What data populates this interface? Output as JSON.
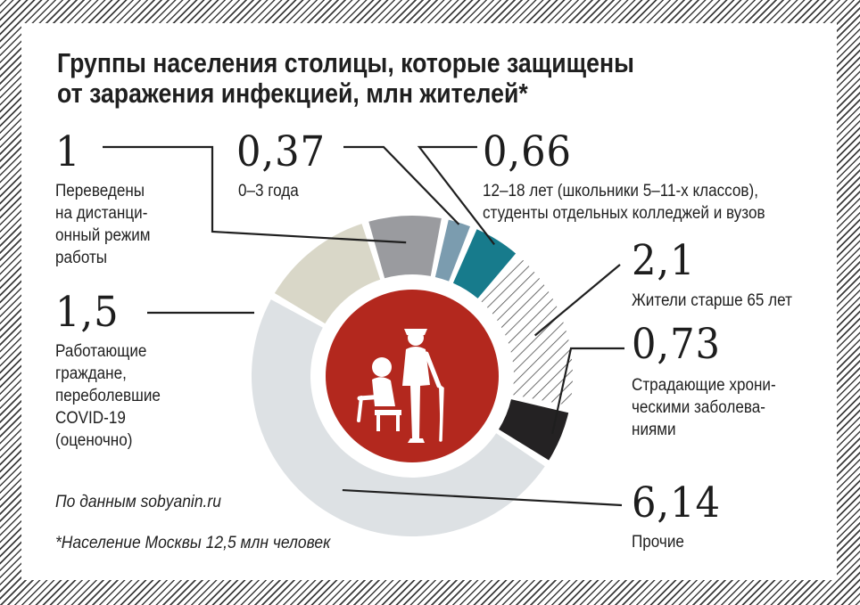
{
  "title_line1": "Группы населения столицы, которые защищены",
  "title_line2": "от заражения инфекцией, млн жителей*",
  "source": "По данным sobyanin.ru",
  "footnote": "*Население Москвы 12,5 млн человек",
  "center_icon": "elderly-people-icon",
  "colors": {
    "hatch": "#3b3b3b",
    "center": "#b3281e"
  },
  "chart_data": {
    "type": "pie",
    "style": "donut",
    "unit": "млн жителей",
    "slices": [
      {
        "value": 1,
        "value_label": "1",
        "label_lines": [
          "Переведены",
          "на дистанци-",
          "онный режим",
          "работы"
        ],
        "color": "#9a9b9f"
      },
      {
        "value": 0.37,
        "value_label": "0,37",
        "label_lines": [
          "0–3 года"
        ],
        "color": "#7b9caf"
      },
      {
        "value": 0.66,
        "value_label": "0,66",
        "label_lines": [
          "12–18 лет (школьники 5–11-х классов),",
          "студенты отдельных колледжей и вузов"
        ],
        "color": "#177b8c"
      },
      {
        "value": 2.1,
        "value_label": "2,1",
        "label_lines": [
          "Жители старше 65 лет"
        ],
        "color": "hatched"
      },
      {
        "value": 0.73,
        "value_label": "0,73",
        "label_lines": [
          "Страдающие хрони-",
          "ческими заболева-",
          "ниями"
        ],
        "color": "#242223"
      },
      {
        "value": 6.14,
        "value_label": "6,14",
        "label_lines": [
          "Прочие"
        ],
        "color": "#dde1e4"
      },
      {
        "value": 1.5,
        "value_label": "1,5",
        "label_lines": [
          "Работающие",
          "граждане,",
          "переболевшие",
          "COVID-19",
          "(оценочно)"
        ],
        "color": "#d9d7c8"
      }
    ]
  }
}
